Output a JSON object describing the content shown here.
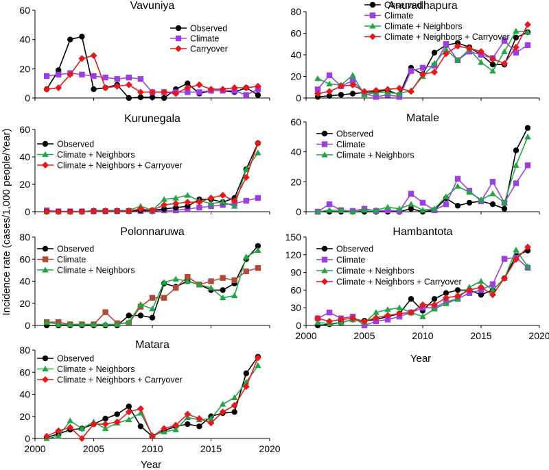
{
  "figure": {
    "ylabel": "Incidence rate (cases/1,000 people/Year)",
    "xlabel_left": "Year",
    "xlabel_right": "Year"
  },
  "series_styles": {
    "Observed": {
      "color": "#000000",
      "marker": "circle"
    },
    "Climate": {
      "color": "#9b3fe0",
      "marker": "square"
    },
    "Climate (brown)": {
      "color": "#b04a3a",
      "marker": "square"
    },
    "Climate + Neighbors": {
      "color": "#22a546",
      "marker": "triangle"
    },
    "Climate + Neighbors + Carryover": {
      "color": "#e31a1c",
      "marker": "diamond"
    },
    "Carryover": {
      "color": "#e31a1c",
      "marker": "diamond"
    }
  },
  "chart_data": [
    {
      "type": "line",
      "title": "Vavuniya",
      "xlim": [
        2000,
        2020
      ],
      "ylim": [
        0,
        60
      ],
      "yticks": [
        0,
        20,
        40,
        60
      ],
      "xticks": [
        2000,
        2005,
        2010,
        2015,
        2020
      ],
      "show_xticklabels": false,
      "x": [
        2001,
        2002,
        2003,
        2004,
        2005,
        2006,
        2007,
        2008,
        2009,
        2010,
        2011,
        2012,
        2013,
        2014,
        2015,
        2016,
        2017,
        2018,
        2019
      ],
      "series": [
        {
          "name": "Observed",
          "style": "Observed",
          "values": [
            6,
            19,
            40,
            42,
            6,
            7,
            9,
            0,
            0.5,
            0.5,
            0,
            6,
            10,
            3,
            5,
            5,
            4,
            7,
            2
          ]
        },
        {
          "name": "Climate",
          "style": "Climate",
          "values": [
            15,
            16,
            17,
            16,
            15,
            14,
            13,
            14,
            13,
            4,
            4,
            4,
            4,
            4,
            5,
            5,
            5,
            2,
            6
          ]
        },
        {
          "name": "Carryover",
          "style": "Carryover",
          "values": [
            6,
            7,
            16,
            27,
            29,
            7,
            8,
            9,
            4,
            4,
            4,
            3,
            7,
            9,
            6,
            6,
            7,
            7,
            8
          ]
        }
      ],
      "legend": [
        "Observed",
        "Climate",
        "Carryover"
      ]
    },
    {
      "type": "line",
      "title": "Anuradhapura",
      "xlim": [
        2000,
        2020
      ],
      "ylim": [
        0,
        80
      ],
      "yticks": [
        0,
        20,
        40,
        60,
        80
      ],
      "xticks": [
        2000,
        2005,
        2010,
        2015,
        2020
      ],
      "show_xticklabels": false,
      "x": [
        2001,
        2002,
        2003,
        2004,
        2005,
        2006,
        2007,
        2008,
        2009,
        2010,
        2011,
        2012,
        2013,
        2014,
        2015,
        2016,
        2017,
        2018,
        2019
      ],
      "series": [
        {
          "name": "Observed",
          "style": "Observed",
          "values": [
            1,
            2,
            3,
            4,
            5,
            6,
            7,
            3,
            28,
            22,
            42,
            49,
            51,
            47,
            40,
            31,
            31,
            56,
            61
          ]
        },
        {
          "name": "Climate",
          "style": "Climate",
          "values": [
            8,
            21,
            11,
            16,
            4,
            1,
            3,
            1,
            25,
            28,
            30,
            50,
            35,
            43,
            40,
            37,
            53,
            42,
            49
          ]
        },
        {
          "name": "Climate + Neighbors",
          "style": "Climate + Neighbors",
          "values": [
            18,
            13,
            12,
            21,
            3,
            5,
            5,
            4,
            7,
            20,
            32,
            45,
            35,
            45,
            33,
            25,
            43,
            62,
            61
          ]
        },
        {
          "name": "Climate + Neighbors + Carryover",
          "style": "Climate + Neighbors + Carryover",
          "values": [
            4,
            6,
            11,
            12,
            6,
            7,
            8,
            9,
            6,
            22,
            24,
            41,
            48,
            46,
            43,
            36,
            32,
            47,
            68
          ]
        }
      ],
      "legend": [
        "Observed",
        "Climate",
        "Climate + Neighbors",
        "Climate + Neighbors + Carryover"
      ]
    },
    {
      "type": "line",
      "title": "Kurunegala",
      "xlim": [
        2000,
        2020
      ],
      "ylim": [
        0,
        60
      ],
      "yticks": [
        0,
        20,
        40,
        60
      ],
      "xticks": [
        2000,
        2005,
        2010,
        2015,
        2020
      ],
      "show_xticklabels": false,
      "x": [
        2001,
        2002,
        2003,
        2004,
        2005,
        2006,
        2007,
        2008,
        2009,
        2010,
        2011,
        2012,
        2013,
        2014,
        2015,
        2016,
        2017,
        2018,
        2019
      ],
      "series": [
        {
          "name": "Climate",
          "style": "Climate",
          "values": [
            1,
            0.2,
            0.2,
            0.2,
            0.3,
            0.3,
            0.4,
            0.5,
            0.5,
            0.5,
            1,
            1,
            2,
            3,
            4,
            5,
            6,
            8,
            10
          ]
        },
        {
          "name": "Observed",
          "style": "Observed",
          "values": [
            0,
            0,
            0,
            0,
            0.5,
            0.5,
            0.5,
            0.5,
            1,
            1,
            2,
            3,
            4,
            9,
            9,
            7,
            10,
            31,
            50
          ]
        },
        {
          "name": "Climate + Neighbors",
          "style": "Climate + Neighbors",
          "values": [
            0,
            0,
            0,
            0,
            1,
            1,
            1,
            1,
            4,
            1,
            9,
            10,
            12,
            8,
            6,
            7,
            4,
            31,
            43
          ]
        },
        {
          "name": "Climate + Neighbors + Carryover",
          "style": "Climate + Neighbors + Carryover",
          "values": [
            0,
            0,
            0,
            0,
            0.5,
            0.5,
            0.5,
            0.5,
            2,
            1,
            5,
            6,
            7,
            7,
            10,
            12,
            8,
            25,
            50
          ]
        }
      ],
      "legend": [
        "Observed",
        "Climate + Neighbors",
        "Climate + Neighbors + Carryover"
      ]
    },
    {
      "type": "line",
      "title": "Matale",
      "xlim": [
        2000,
        2020
      ],
      "ylim": [
        0,
        60
      ],
      "yticks": [
        0,
        20,
        40,
        60
      ],
      "xticks": [
        2000,
        2005,
        2010,
        2015,
        2020
      ],
      "show_xticklabels": false,
      "x": [
        2001,
        2002,
        2003,
        2004,
        2005,
        2006,
        2007,
        2008,
        2009,
        2010,
        2011,
        2012,
        2013,
        2014,
        2015,
        2016,
        2017,
        2018,
        2019
      ],
      "series": [
        {
          "name": "Observed",
          "style": "Observed",
          "values": [
            0,
            0,
            0,
            0,
            0,
            0,
            0,
            0,
            2,
            0,
            1,
            9,
            4,
            6,
            7,
            5,
            2,
            41,
            56
          ]
        },
        {
          "name": "Climate",
          "style": "Climate",
          "values": [
            0,
            5,
            1,
            0.5,
            2,
            0.5,
            1,
            0.5,
            12,
            6,
            1,
            5,
            22,
            14,
            7,
            20,
            6,
            19,
            31
          ]
        },
        {
          "name": "Climate + Neighbors",
          "style": "Climate + Neighbors",
          "values": [
            0,
            1,
            1,
            0,
            1,
            1,
            3,
            2,
            5,
            1,
            2,
            10,
            17,
            13,
            8,
            12,
            6,
            31,
            50
          ]
        }
      ],
      "legend": [
        "Observed",
        "Climate",
        "Climate + Neighbors"
      ]
    },
    {
      "type": "line",
      "title": "Polonnaruwa",
      "xlim": [
        2000,
        2020
      ],
      "ylim": [
        0,
        80
      ],
      "yticks": [
        0,
        20,
        40,
        60,
        80
      ],
      "xticks": [
        2000,
        2005,
        2010,
        2015,
        2020
      ],
      "show_xticklabels": false,
      "x": [
        2001,
        2002,
        2003,
        2004,
        2005,
        2006,
        2007,
        2008,
        2009,
        2010,
        2011,
        2012,
        2013,
        2014,
        2015,
        2016,
        2017,
        2018,
        2019
      ],
      "series": [
        {
          "name": "Observed",
          "style": "Observed",
          "values": [
            0,
            0,
            0,
            0,
            0,
            0,
            0,
            9,
            9,
            7,
            38,
            35,
            40,
            37,
            32,
            32,
            38,
            60,
            72
          ]
        },
        {
          "name": "Climate",
          "style": "Climate (brown)",
          "values": [
            3,
            3,
            1,
            1,
            1,
            12,
            2,
            2,
            17,
            25,
            25,
            34,
            44,
            37,
            40,
            43,
            41,
            49,
            52
          ]
        },
        {
          "name": "Climate + Neighbors",
          "style": "Climate + Neighbors",
          "values": [
            3,
            1,
            1,
            1,
            1,
            1,
            1,
            3,
            19,
            15,
            39,
            42,
            40,
            37,
            34,
            25,
            27,
            62,
            68
          ]
        }
      ],
      "legend": [
        "Observed",
        "Climate",
        "Climate + Neighbors"
      ]
    },
    {
      "type": "line",
      "title": "Hambantota",
      "xlim": [
        2000,
        2020
      ],
      "ylim": [
        0,
        150
      ],
      "yticks": [
        0,
        30,
        60,
        90,
        120,
        150
      ],
      "xticks": [
        2000,
        2005,
        2010,
        2015,
        2020
      ],
      "show_xticklabels": true,
      "x": [
        2001,
        2002,
        2003,
        2004,
        2005,
        2006,
        2007,
        2008,
        2009,
        2010,
        2011,
        2012,
        2013,
        2014,
        2015,
        2016,
        2017,
        2018,
        2019
      ],
      "series": [
        {
          "name": "Observed",
          "style": "Observed",
          "values": [
            0,
            2,
            5,
            10,
            8,
            10,
            15,
            20,
            45,
            25,
            45,
            55,
            60,
            60,
            52,
            60,
            80,
            118,
            127
          ]
        },
        {
          "name": "Climate",
          "style": "Climate",
          "values": [
            12,
            22,
            12,
            15,
            0,
            7,
            10,
            15,
            22,
            30,
            30,
            40,
            45,
            55,
            60,
            70,
            113,
            115,
            98
          ]
        },
        {
          "name": "Climate + Neighbors",
          "style": "Climate + Neighbors",
          "values": [
            5,
            3,
            5,
            10,
            5,
            22,
            27,
            30,
            22,
            15,
            28,
            37,
            45,
            65,
            75,
            60,
            80,
            128,
            100
          ]
        },
        {
          "name": "Climate + Neighbors + Carryover",
          "style": "Climate + Neighbors + Carryover",
          "values": [
            12,
            7,
            10,
            12,
            7,
            13,
            17,
            20,
            22,
            35,
            35,
            47,
            50,
            60,
            65,
            52,
            80,
            112,
            133
          ]
        }
      ],
      "legend": [
        "Observed",
        "Climate",
        "Climate + Neighbors",
        "Climate + Neighbors + Carryover"
      ]
    },
    {
      "type": "line",
      "title": "Matara",
      "xlim": [
        2000,
        2020
      ],
      "ylim": [
        0,
        80
      ],
      "yticks": [
        0,
        20,
        40,
        60,
        80
      ],
      "xticks": [
        2000,
        2005,
        2010,
        2015,
        2020
      ],
      "show_xticklabels": true,
      "x": [
        2001,
        2002,
        2003,
        2004,
        2005,
        2006,
        2007,
        2008,
        2009,
        2010,
        2011,
        2012,
        2013,
        2014,
        2015,
        2016,
        2017,
        2018,
        2019
      ],
      "series": [
        {
          "name": "Observed",
          "style": "Observed",
          "values": [
            1,
            4,
            8,
            9,
            13,
            18,
            22,
            29,
            11,
            2,
            7,
            11,
            13,
            11,
            20,
            23,
            24,
            59,
            74
          ]
        },
        {
          "name": "Climate + Neighbors",
          "style": "Climate + Neighbors",
          "values": [
            0,
            2,
            16,
            9,
            15,
            9,
            14,
            17,
            23,
            3,
            6,
            8,
            19,
            17,
            18,
            31,
            37,
            51,
            66
          ]
        },
        {
          "name": "Climate + Neighbors + Carryover",
          "style": "Climate + Neighbors + Carryover",
          "values": [
            2,
            7,
            10,
            0,
            13,
            13,
            15,
            24,
            27,
            2,
            9,
            12,
            22,
            18,
            14,
            24,
            30,
            47,
            73
          ]
        }
      ],
      "legend": [
        "Observed",
        "Climate + Neighbors",
        "Climate + Neighbors + Carryover"
      ]
    }
  ]
}
